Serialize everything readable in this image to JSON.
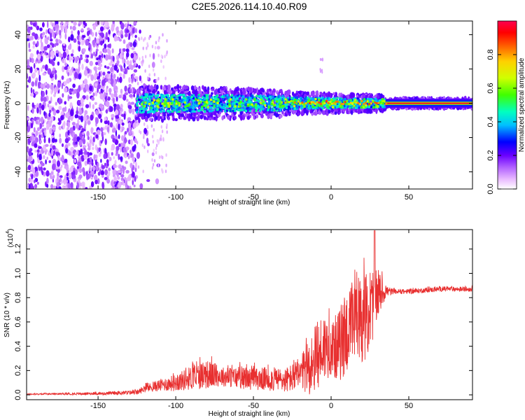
{
  "title": "C2E5.2026.114.10.40.R09",
  "chart_data": [
    {
      "type": "heatmap",
      "name": "spectrogram",
      "xlabel": "Height of straight line (km)",
      "ylabel": "Frequency (Hz)",
      "xlim": [
        -196,
        91
      ],
      "ylim": [
        -50,
        48
      ],
      "xticks": [
        "-150",
        "-100",
        "-50",
        "0",
        "50"
      ],
      "xtick_values": [
        -150,
        -100,
        -50,
        0,
        50
      ],
      "yticks": [
        "-40",
        "-20",
        "0",
        "20",
        "40"
      ],
      "ytick_values": [
        -40,
        -20,
        0,
        20,
        40
      ],
      "colorbar": {
        "label": "Normalized spectral amplitude",
        "range": [
          0,
          1
        ],
        "ticks": [
          "0.0",
          "0.2",
          "0.4",
          "0.6",
          "0.8"
        ],
        "tick_values": [
          0.0,
          0.2,
          0.4,
          0.6,
          0.8
        ],
        "colors": [
          "#ffffff",
          "#e8b8ff",
          "#b060ff",
          "#6a00ff",
          "#0000ff",
          "#00c0ff",
          "#00ffc0",
          "#40ff00",
          "#d0ff00",
          "#ffd000",
          "#ff6000",
          "#ff0000",
          "#ff0050"
        ]
      },
      "regions": [
        {
          "x": [
            -196,
            -125
          ],
          "f_half_width": 48,
          "amplitude": 0.08,
          "description_key": "noise"
        },
        {
          "x": [
            -125,
            -30
          ],
          "f_half_width": 8,
          "amplitude": 0.35
        },
        {
          "x": [
            -30,
            35
          ],
          "f_half_width": 5,
          "amplitude": 0.45
        },
        {
          "x": [
            35,
            91
          ],
          "f_half_width": 2,
          "amplitude": 0.95
        }
      ]
    },
    {
      "type": "line",
      "name": "snr",
      "xlabel": "Height of straight line (km)",
      "ylabel": "SNR (10 * v/v)",
      "y_multiplier": "(x10^4)",
      "y_multiplier_base": "(x10",
      "y_multiplier_exp": "4",
      "y_multiplier_close": ")",
      "xlim": [
        -196,
        91
      ],
      "ylim": [
        -0.04,
        1.36
      ],
      "xticks": [
        "-150",
        "-100",
        "-50",
        "0",
        "50"
      ],
      "xtick_values": [
        -150,
        -100,
        -50,
        0,
        50
      ],
      "yticks": [
        "0.0",
        "0.2",
        "0.4",
        "0.6",
        "0.8",
        "1.0",
        "1.2"
      ],
      "ytick_values": [
        0.0,
        0.2,
        0.4,
        0.6,
        0.8,
        1.0,
        1.2
      ],
      "color": "#e83030",
      "envelope": {
        "x": [
          -196,
          -150,
          -125,
          -120,
          -110,
          -100,
          -90,
          -80,
          -70,
          -60,
          -50,
          -40,
          -30,
          -20,
          -15,
          -10,
          -5,
          0,
          5,
          10,
          15,
          20,
          25,
          30,
          35,
          40,
          50,
          60,
          70,
          80,
          91
        ],
        "mean": [
          0.005,
          0.01,
          0.02,
          0.05,
          0.08,
          0.1,
          0.14,
          0.17,
          0.15,
          0.14,
          0.13,
          0.13,
          0.12,
          0.16,
          0.22,
          0.28,
          0.4,
          0.38,
          0.4,
          0.52,
          0.58,
          0.6,
          0.7,
          0.82,
          0.85,
          0.85,
          0.85,
          0.86,
          0.87,
          0.87,
          0.87
        ],
        "spread": [
          0.005,
          0.01,
          0.02,
          0.03,
          0.05,
          0.07,
          0.1,
          0.12,
          0.08,
          0.09,
          0.09,
          0.1,
          0.1,
          0.14,
          0.22,
          0.28,
          0.3,
          0.22,
          0.3,
          0.36,
          0.34,
          0.34,
          0.36,
          0.2,
          0.06,
          0.02,
          0.02,
          0.02,
          0.02,
          0.02,
          0.02
        ]
      },
      "peak": {
        "x": 28,
        "y": 1.35
      }
    }
  ]
}
